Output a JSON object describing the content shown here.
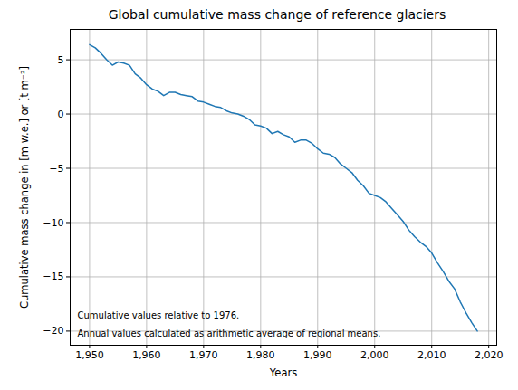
{
  "chart_data": {
    "type": "line",
    "title": "Global cumulative mass change of reference glaciers",
    "x_label": "Years",
    "y_label": "Cumulative mass change in [m w.e.] or [t m⁻²]",
    "annotations": [
      "Cumulative values relative to 1976.",
      "Annual values calculated as arithmetic average of regional means."
    ],
    "x": [
      1950,
      1951,
      1952,
      1953,
      1954,
      1955,
      1956,
      1957,
      1958,
      1959,
      1960,
      1961,
      1962,
      1963,
      1964,
      1965,
      1966,
      1967,
      1968,
      1969,
      1970,
      1971,
      1972,
      1973,
      1974,
      1975,
      1976,
      1977,
      1978,
      1979,
      1980,
      1981,
      1982,
      1983,
      1984,
      1985,
      1986,
      1987,
      1988,
      1989,
      1990,
      1991,
      1992,
      1993,
      1994,
      1995,
      1996,
      1997,
      1998,
      1999,
      2000,
      2001,
      2002,
      2003,
      2004,
      2005,
      2006,
      2007,
      2008,
      2009,
      2010,
      2011,
      2012,
      2013,
      2014,
      2015,
      2016,
      2017,
      2018
    ],
    "values": [
      6.4,
      6.1,
      5.6,
      5.0,
      4.5,
      4.8,
      4.7,
      4.5,
      3.7,
      3.3,
      2.7,
      2.3,
      2.1,
      1.7,
      2.0,
      2.0,
      1.8,
      1.7,
      1.6,
      1.2,
      1.1,
      0.9,
      0.7,
      0.6,
      0.3,
      0.1,
      0.0,
      -0.2,
      -0.5,
      -1.0,
      -1.1,
      -1.3,
      -1.8,
      -1.6,
      -1.9,
      -2.1,
      -2.6,
      -2.4,
      -2.4,
      -2.7,
      -3.2,
      -3.6,
      -3.7,
      -4.0,
      -4.6,
      -5.0,
      -5.4,
      -6.1,
      -6.6,
      -7.3,
      -7.5,
      -7.7,
      -8.1,
      -8.7,
      -9.3,
      -9.9,
      -10.7,
      -11.3,
      -11.8,
      -12.2,
      -12.8,
      -13.7,
      -14.5,
      -15.4,
      -16.1,
      -17.3,
      -18.3,
      -19.2,
      -20.0
    ],
    "color": "#1f77b4",
    "xlim": [
      1946.6,
      2021.4
    ],
    "xticks": [
      1950,
      1960,
      1970,
      1980,
      1990,
      2000,
      2010,
      2020
    ],
    "ylim": [
      -21.3,
      7.8
    ],
    "yticks": [
      -20,
      -15,
      -10,
      -5,
      0,
      5
    ],
    "grid": true
  }
}
